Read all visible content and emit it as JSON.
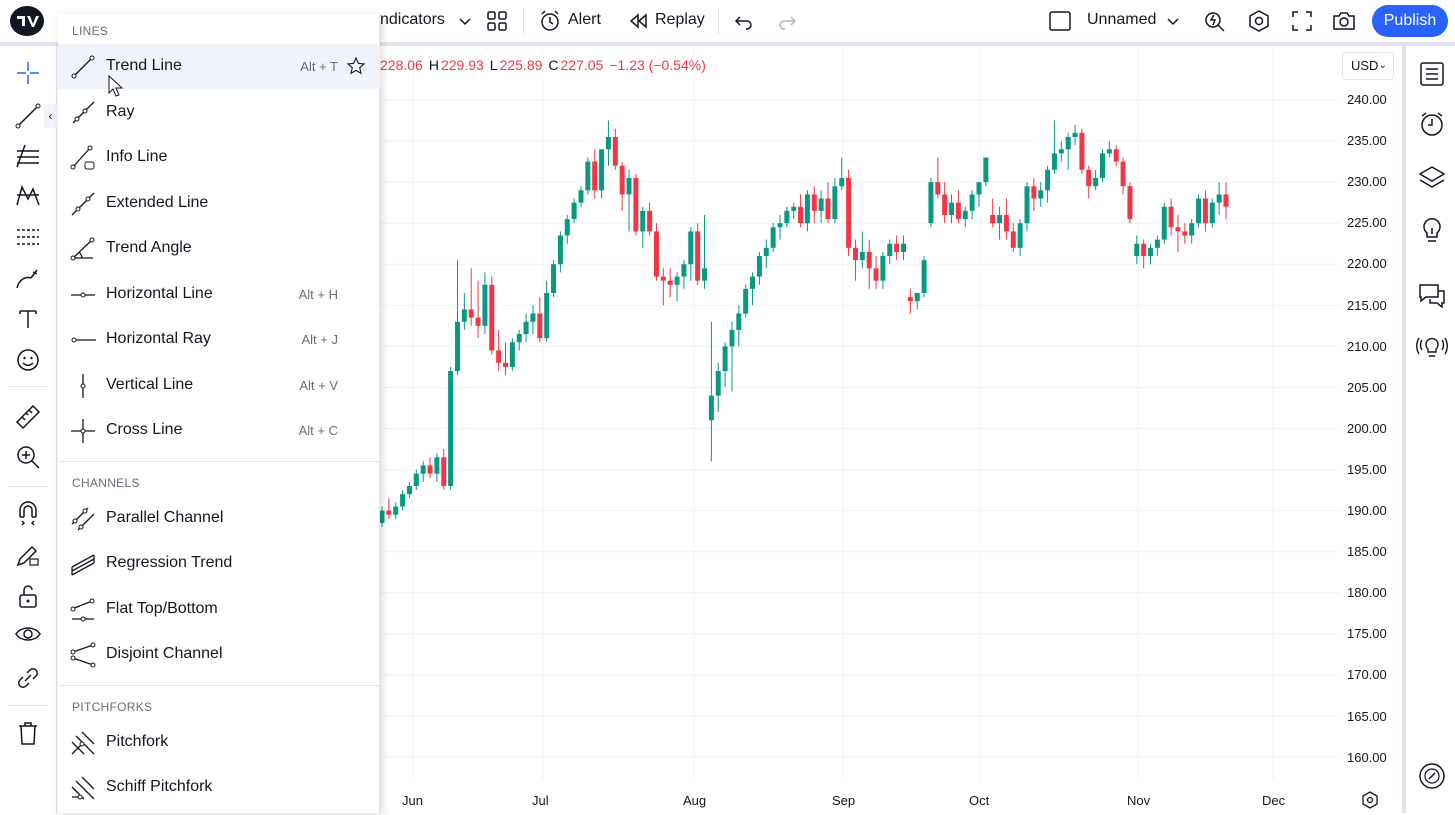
{
  "top_toolbar": {
    "indicators_label": "ndicators",
    "alert_label": "Alert",
    "replay_label": "Replay",
    "layout_name": "Unnamed",
    "publish_label": "Publish"
  },
  "legend": {
    "o_value": "228.06",
    "h_key": "H",
    "h_value": "229.93",
    "l_key": "L",
    "l_value": "225.89",
    "c_key": "C",
    "c_value": "227.05",
    "change": "−1.23 (−0.54%)"
  },
  "currency": "USD",
  "menu": {
    "sections": [
      {
        "title": "LINES",
        "items": [
          {
            "label": "Trend Line",
            "hotkey": "Alt + T",
            "icon": "trend-line-icon",
            "highlighted": true
          },
          {
            "label": "Ray",
            "hotkey": "",
            "icon": "ray-icon"
          },
          {
            "label": "Info Line",
            "hotkey": "",
            "icon": "info-line-icon"
          },
          {
            "label": "Extended Line",
            "hotkey": "",
            "icon": "extended-line-icon"
          },
          {
            "label": "Trend Angle",
            "hotkey": "",
            "icon": "trend-angle-icon"
          },
          {
            "label": "Horizontal Line",
            "hotkey": "Alt + H",
            "icon": "horizontal-line-icon"
          },
          {
            "label": "Horizontal Ray",
            "hotkey": "Alt + J",
            "icon": "horizontal-ray-icon"
          },
          {
            "label": "Vertical Line",
            "hotkey": "Alt + V",
            "icon": "vertical-line-icon"
          },
          {
            "label": "Cross Line",
            "hotkey": "Alt + C",
            "icon": "cross-line-icon"
          }
        ]
      },
      {
        "title": "CHANNELS",
        "items": [
          {
            "label": "Parallel Channel",
            "icon": "parallel-channel-icon"
          },
          {
            "label": "Regression Trend",
            "icon": "regression-trend-icon"
          },
          {
            "label": "Flat Top/Bottom",
            "icon": "flat-top-bottom-icon"
          },
          {
            "label": "Disjoint Channel",
            "icon": "disjoint-channel-icon"
          }
        ]
      },
      {
        "title": "PITCHFORKS",
        "items": [
          {
            "label": "Pitchfork",
            "icon": "pitchfork-icon"
          },
          {
            "label": "Schiff Pitchfork",
            "icon": "schiff-pitchfork-icon"
          }
        ]
      }
    ]
  },
  "price_axis": [
    "240.00",
    "235.00",
    "230.00",
    "225.00",
    "220.00",
    "215.00",
    "210.00",
    "205.00",
    "200.00",
    "195.00",
    "190.00",
    "185.00",
    "180.00",
    "175.00",
    "170.00",
    "165.00",
    "160.00"
  ],
  "time_axis": [
    "Jun",
    "Jul",
    "Aug",
    "Sep",
    "Oct",
    "Nov",
    "Dec"
  ],
  "colors": {
    "up": "#089981",
    "down": "#f23645",
    "accent": "#2962ff",
    "grid": "#f0f3fa"
  },
  "chart_data": {
    "type": "candlestick",
    "x_ticks": [
      "Jun",
      "Jul",
      "Aug",
      "Sep",
      "Oct",
      "Nov",
      "Dec"
    ],
    "y_range": [
      158,
      242
    ],
    "candles": [
      {
        "o": 188.5,
        "h": 190.5,
        "l": 188,
        "c": 190
      },
      {
        "o": 190,
        "h": 191.5,
        "l": 189,
        "c": 189.5
      },
      {
        "o": 189.5,
        "h": 191,
        "l": 189,
        "c": 190.5
      },
      {
        "o": 190.5,
        "h": 192.5,
        "l": 190,
        "c": 192
      },
      {
        "o": 192,
        "h": 193.5,
        "l": 191.5,
        "c": 193
      },
      {
        "o": 193,
        "h": 195,
        "l": 192.5,
        "c": 194.5
      },
      {
        "o": 194.5,
        "h": 196,
        "l": 193.5,
        "c": 195.5
      },
      {
        "o": 195.5,
        "h": 196.5,
        "l": 194,
        "c": 194.5
      },
      {
        "o": 194.5,
        "h": 197,
        "l": 193.5,
        "c": 196.5
      },
      {
        "o": 196.5,
        "h": 197.5,
        "l": 192.5,
        "c": 193
      },
      {
        "o": 193,
        "h": 207.5,
        "l": 192.5,
        "c": 207
      },
      {
        "o": 207,
        "h": 220.5,
        "l": 206.5,
        "c": 213
      },
      {
        "o": 213,
        "h": 216.5,
        "l": 212,
        "c": 214.5
      },
      {
        "o": 214.5,
        "h": 219.5,
        "l": 212.5,
        "c": 213.5
      },
      {
        "o": 213.5,
        "h": 218,
        "l": 211,
        "c": 212.5
      },
      {
        "o": 212.5,
        "h": 219,
        "l": 211.5,
        "c": 217.5
      },
      {
        "o": 217.5,
        "h": 218.5,
        "l": 209,
        "c": 209.5
      },
      {
        "o": 209.5,
        "h": 212,
        "l": 207,
        "c": 208
      },
      {
        "o": 208,
        "h": 210.5,
        "l": 206.5,
        "c": 207.5
      },
      {
        "o": 207.5,
        "h": 211,
        "l": 207,
        "c": 210.5
      },
      {
        "o": 210.5,
        "h": 212,
        "l": 209.5,
        "c": 211.5
      },
      {
        "o": 211.5,
        "h": 214,
        "l": 210.5,
        "c": 213
      },
      {
        "o": 213,
        "h": 215,
        "l": 211.5,
        "c": 214
      },
      {
        "o": 214,
        "h": 216,
        "l": 210.5,
        "c": 211
      },
      {
        "o": 211,
        "h": 218,
        "l": 210.5,
        "c": 216.5
      },
      {
        "o": 216.5,
        "h": 220.5,
        "l": 216,
        "c": 220
      },
      {
        "o": 220,
        "h": 224,
        "l": 219,
        "c": 223.5
      },
      {
        "o": 223.5,
        "h": 226,
        "l": 222.5,
        "c": 225.5
      },
      {
        "o": 225.5,
        "h": 228,
        "l": 225,
        "c": 227.5
      },
      {
        "o": 227.5,
        "h": 229.5,
        "l": 227,
        "c": 229
      },
      {
        "o": 229,
        "h": 233,
        "l": 228.5,
        "c": 232.5
      },
      {
        "o": 232.5,
        "h": 234,
        "l": 228,
        "c": 229
      },
      {
        "o": 229,
        "h": 234,
        "l": 228,
        "c": 234
      },
      {
        "o": 234,
        "h": 237.5,
        "l": 232,
        "c": 235.5
      },
      {
        "o": 235.5,
        "h": 236.5,
        "l": 231.5,
        "c": 232
      },
      {
        "o": 232,
        "h": 232.5,
        "l": 226.5,
        "c": 228.5
      },
      {
        "o": 228.5,
        "h": 231.5,
        "l": 224,
        "c": 230.5
      },
      {
        "o": 230.5,
        "h": 231,
        "l": 223.5,
        "c": 224
      },
      {
        "o": 224,
        "h": 227,
        "l": 222,
        "c": 226.5
      },
      {
        "o": 226.5,
        "h": 227.5,
        "l": 223.5,
        "c": 224
      },
      {
        "o": 224,
        "h": 225,
        "l": 218,
        "c": 218.5
      },
      {
        "o": 218.5,
        "h": 219.5,
        "l": 215,
        "c": 218
      },
      {
        "o": 218,
        "h": 219.5,
        "l": 216,
        "c": 217.5
      },
      {
        "o": 217.5,
        "h": 219,
        "l": 215.5,
        "c": 218.5
      },
      {
        "o": 218.5,
        "h": 220.5,
        "l": 217,
        "c": 220
      },
      {
        "o": 220,
        "h": 224.5,
        "l": 218,
        "c": 224
      },
      {
        "o": 224,
        "h": 225,
        "l": 217.5,
        "c": 218
      },
      {
        "o": 218,
        "h": 226,
        "l": 217,
        "c": 219.5
      },
      {
        "o": 201,
        "h": 213,
        "l": 196,
        "c": 204
      },
      {
        "o": 204,
        "h": 208,
        "l": 202,
        "c": 207
      },
      {
        "o": 207,
        "h": 210.5,
        "l": 205,
        "c": 210
      },
      {
        "o": 210,
        "h": 213,
        "l": 204.5,
        "c": 212
      },
      {
        "o": 212,
        "h": 215,
        "l": 210,
        "c": 214
      },
      {
        "o": 214,
        "h": 217.5,
        "l": 213.5,
        "c": 217
      },
      {
        "o": 217,
        "h": 219,
        "l": 215,
        "c": 218.5
      },
      {
        "o": 218.5,
        "h": 221.5,
        "l": 217.5,
        "c": 221
      },
      {
        "o": 221,
        "h": 223,
        "l": 219.5,
        "c": 222
      },
      {
        "o": 222,
        "h": 225,
        "l": 221.5,
        "c": 224.5
      },
      {
        "o": 224.5,
        "h": 226,
        "l": 223,
        "c": 225
      },
      {
        "o": 225,
        "h": 227,
        "l": 224.5,
        "c": 226.5
      },
      {
        "o": 226.5,
        "h": 227.5,
        "l": 225.5,
        "c": 227
      },
      {
        "o": 227,
        "h": 228.5,
        "l": 224.5,
        "c": 225
      },
      {
        "o": 225,
        "h": 229,
        "l": 224,
        "c": 228.5
      },
      {
        "o": 228.5,
        "h": 229.5,
        "l": 225,
        "c": 226.5
      },
      {
        "o": 226.5,
        "h": 229,
        "l": 225,
        "c": 228
      },
      {
        "o": 228,
        "h": 230,
        "l": 225,
        "c": 225.5
      },
      {
        "o": 225.5,
        "h": 230.5,
        "l": 225,
        "c": 229.5
      },
      {
        "o": 229.5,
        "h": 233,
        "l": 229,
        "c": 230.5
      },
      {
        "o": 230.5,
        "h": 231.5,
        "l": 221,
        "c": 222
      },
      {
        "o": 222,
        "h": 223,
        "l": 218,
        "c": 220.5
      },
      {
        "o": 220.5,
        "h": 224,
        "l": 219.5,
        "c": 221.5
      },
      {
        "o": 221.5,
        "h": 223,
        "l": 217,
        "c": 219.5
      },
      {
        "o": 219.5,
        "h": 221,
        "l": 217,
        "c": 218
      },
      {
        "o": 218,
        "h": 221.5,
        "l": 217,
        "c": 221
      },
      {
        "o": 221,
        "h": 223,
        "l": 220,
        "c": 222.5
      },
      {
        "o": 222.5,
        "h": 223.5,
        "l": 220.5,
        "c": 221.5
      },
      {
        "o": 221.5,
        "h": 223.5,
        "l": 220.5,
        "c": 222.5
      },
      {
        "o": 216,
        "h": 217,
        "l": 214,
        "c": 215.5
      },
      {
        "o": 215.5,
        "h": 216,
        "l": 214.5,
        "c": 216.5
      },
      {
        "o": 216.5,
        "h": 221,
        "l": 216,
        "c": 220.5
      },
      {
        "o": 225,
        "h": 230.5,
        "l": 224.5,
        "c": 230
      },
      {
        "o": 230,
        "h": 233,
        "l": 228,
        "c": 228.5
      },
      {
        "o": 228.5,
        "h": 230,
        "l": 225,
        "c": 226
      },
      {
        "o": 226,
        "h": 228.5,
        "l": 225,
        "c": 227.5
      },
      {
        "o": 227.5,
        "h": 229,
        "l": 225,
        "c": 225.5
      },
      {
        "o": 225.5,
        "h": 227,
        "l": 224.5,
        "c": 226.5
      },
      {
        "o": 226.5,
        "h": 229,
        "l": 225.5,
        "c": 228.5
      },
      {
        "o": 228.5,
        "h": 230,
        "l": 227,
        "c": 230
      },
      {
        "o": 230,
        "h": 233,
        "l": 229.5,
        "c": 233
      },
      {
        "o": 226,
        "h": 228,
        "l": 224.5,
        "c": 225
      },
      {
        "o": 225,
        "h": 227,
        "l": 223,
        "c": 226
      },
      {
        "o": 226,
        "h": 228,
        "l": 223,
        "c": 224
      },
      {
        "o": 224,
        "h": 225,
        "l": 221.5,
        "c": 222
      },
      {
        "o": 222,
        "h": 225.5,
        "l": 221,
        "c": 225
      },
      {
        "o": 225,
        "h": 230,
        "l": 224,
        "c": 229.5
      },
      {
        "o": 229.5,
        "h": 230.5,
        "l": 226.5,
        "c": 228
      },
      {
        "o": 228,
        "h": 230,
        "l": 227,
        "c": 229
      },
      {
        "o": 229,
        "h": 232,
        "l": 227.5,
        "c": 231.5
      },
      {
        "o": 231.5,
        "h": 237.5,
        "l": 231,
        "c": 233.5
      },
      {
        "o": 233.5,
        "h": 235,
        "l": 232.5,
        "c": 234
      },
      {
        "o": 234,
        "h": 236,
        "l": 231.5,
        "c": 235.5
      },
      {
        "o": 235.5,
        "h": 237,
        "l": 234.5,
        "c": 236
      },
      {
        "o": 236,
        "h": 236.5,
        "l": 231,
        "c": 231.5
      },
      {
        "o": 231.5,
        "h": 232,
        "l": 228,
        "c": 229.5
      },
      {
        "o": 229.5,
        "h": 231.5,
        "l": 229,
        "c": 230.5
      },
      {
        "o": 230.5,
        "h": 234,
        "l": 230,
        "c": 233.5
      },
      {
        "o": 233.5,
        "h": 235,
        "l": 233,
        "c": 234
      },
      {
        "o": 234,
        "h": 234.5,
        "l": 232,
        "c": 232.5
      },
      {
        "o": 232.5,
        "h": 233,
        "l": 228.5,
        "c": 229.5
      },
      {
        "o": 229.5,
        "h": 230,
        "l": 225,
        "c": 225.5
      },
      {
        "o": 221,
        "h": 223.5,
        "l": 220,
        "c": 222.5
      },
      {
        "o": 222.5,
        "h": 223,
        "l": 219.5,
        "c": 221
      },
      {
        "o": 221,
        "h": 222.5,
        "l": 220,
        "c": 222
      },
      {
        "o": 222,
        "h": 223.5,
        "l": 221,
        "c": 223
      },
      {
        "o": 223,
        "h": 227.5,
        "l": 222.5,
        "c": 227
      },
      {
        "o": 227,
        "h": 228,
        "l": 223.5,
        "c": 224.5
      },
      {
        "o": 224.5,
        "h": 226,
        "l": 221.5,
        "c": 224
      },
      {
        "o": 224,
        "h": 225,
        "l": 222.5,
        "c": 223.5
      },
      {
        "o": 223.5,
        "h": 225.5,
        "l": 222.5,
        "c": 225
      },
      {
        "o": 225,
        "h": 228.5,
        "l": 224.5,
        "c": 228
      },
      {
        "o": 228,
        "h": 229,
        "l": 224,
        "c": 225
      },
      {
        "o": 225,
        "h": 228,
        "l": 224.5,
        "c": 227.5
      },
      {
        "o": 227.5,
        "h": 230,
        "l": 226,
        "c": 228.5
      },
      {
        "o": 228.5,
        "h": 230,
        "l": 225.5,
        "c": 227
      }
    ]
  }
}
